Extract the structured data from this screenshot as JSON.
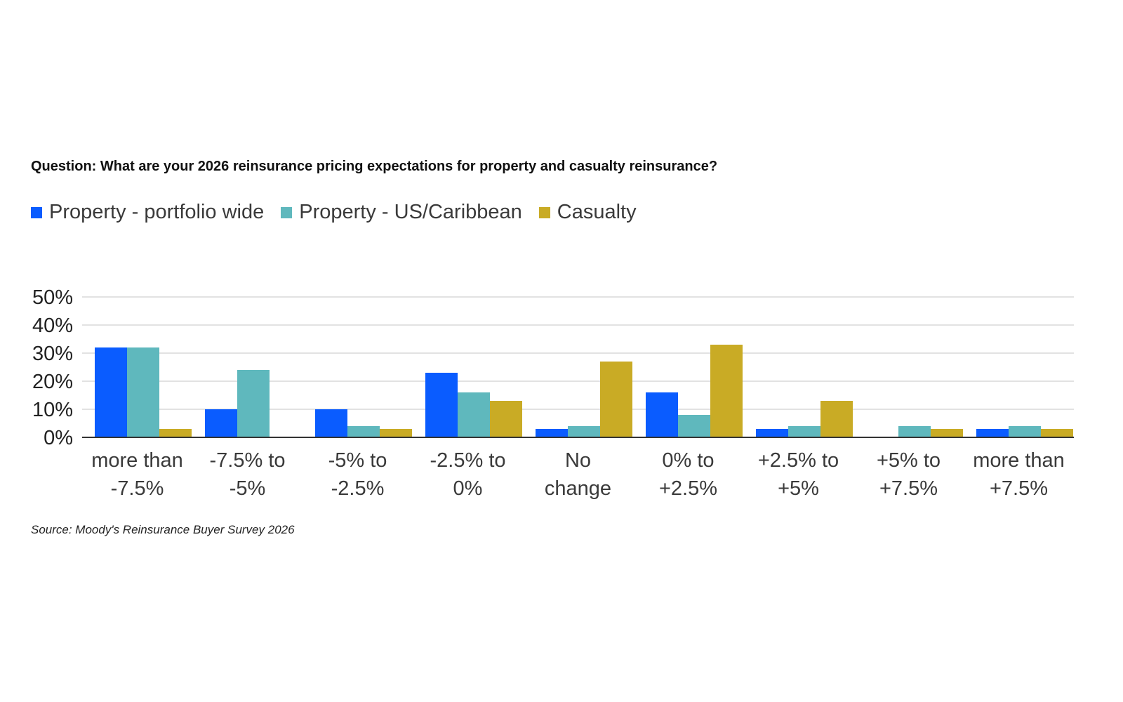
{
  "question": "Question: What are your 2026 reinsurance pricing expectations for property and casualty reinsurance?",
  "source": "Source: Moody's Reinsurance Buyer Survey 2026",
  "chart_data": {
    "type": "bar",
    "title": "Question: What are your 2026 reinsurance pricing expectations for property and casualty reinsurance?",
    "xlabel": "",
    "ylabel": "",
    "ylim": [
      0,
      50
    ],
    "yticks": [
      "0%",
      "10%",
      "20%",
      "30%",
      "40%",
      "50%"
    ],
    "grid": true,
    "legend_position": "top-left",
    "categories": [
      [
        "more than",
        "-7.5%"
      ],
      [
        "-7.5% to",
        "-5%"
      ],
      [
        "-5% to",
        "-2.5%"
      ],
      [
        "-2.5% to",
        "0%"
      ],
      [
        "No",
        "change"
      ],
      [
        "0% to",
        "+2.5%"
      ],
      [
        "+2.5% to",
        "+5%"
      ],
      [
        "+5% to",
        "+7.5%"
      ],
      [
        "more than",
        "+7.5%"
      ]
    ],
    "series": [
      {
        "name": "Property - portfolio wide",
        "color": "#0a5cff",
        "values": [
          32,
          10,
          10,
          23,
          3,
          16,
          3,
          0,
          3
        ]
      },
      {
        "name": "Property - US/Caribbean",
        "color": "#5fb8bd",
        "values": [
          32,
          24,
          4,
          16,
          4,
          8,
          4,
          4,
          4
        ]
      },
      {
        "name": "Casualty",
        "color": "#c9ab25",
        "values": [
          3,
          0,
          3,
          13,
          27,
          33,
          13,
          3,
          3
        ]
      }
    ]
  }
}
